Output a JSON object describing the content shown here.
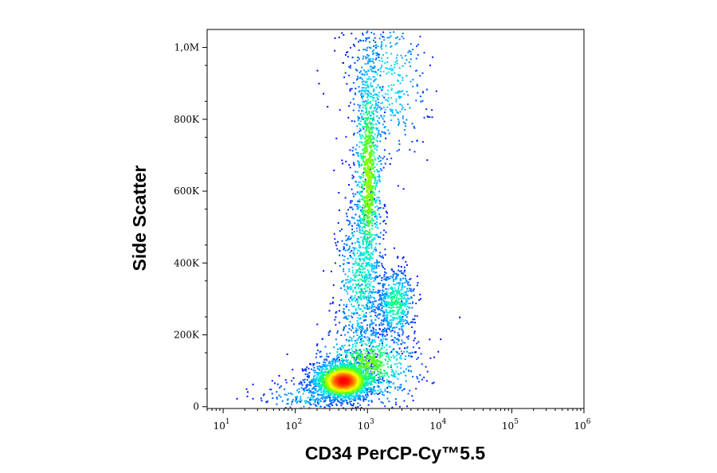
{
  "chart_data": {
    "type": "heatmap",
    "subtype": "flow-cytometry-density-dot-plot",
    "title": "",
    "xlabel": "CD34 PerCP-Cy™5.5",
    "ylabel": "Side Scatter",
    "x_scale": "log",
    "xlim": [
      6,
      1000000
    ],
    "ylim": [
      -5000,
      1050000
    ],
    "x_ticks": [
      {
        "value": 10,
        "base": "10",
        "exp": "1"
      },
      {
        "value": 100,
        "base": "10",
        "exp": "2"
      },
      {
        "value": 1000,
        "base": "10",
        "exp": "3"
      },
      {
        "value": 10000,
        "base": "10",
        "exp": "4"
      },
      {
        "value": 100000,
        "base": "10",
        "exp": "5"
      },
      {
        "value": 1000000,
        "base": "10",
        "exp": "6"
      }
    ],
    "y_ticks": [
      {
        "value": 0,
        "label": "0"
      },
      {
        "value": 200000,
        "label": "200K"
      },
      {
        "value": 400000,
        "label": "400K"
      },
      {
        "value": 600000,
        "label": "600K"
      },
      {
        "value": 800000,
        "label": "800K"
      },
      {
        "value": 1000000,
        "label": "1,0M"
      }
    ],
    "grid": false,
    "legend": "none",
    "colormap": [
      "#0000ff",
      "#0080ff",
      "#00e0ff",
      "#00ff80",
      "#80ff00",
      "#ffff00",
      "#ff8000",
      "#ff0000"
    ],
    "populations": [
      {
        "x_center": 450,
        "y_center": 75000,
        "log_x_spread": 0.22,
        "y_spread": 28000,
        "weight": 0.32,
        "peak_level": 1.0
      },
      {
        "x_center": 1000,
        "y_center": 120000,
        "log_x_spread": 0.35,
        "y_spread": 60000,
        "weight": 0.14,
        "peak_level": 0.55
      },
      {
        "x_center": 1000,
        "y_center": 640000,
        "log_x_spread": 0.1,
        "y_spread": 210000,
        "weight": 0.2,
        "peak_level": 0.6
      },
      {
        "x_center": 800,
        "y_center": 350000,
        "log_x_spread": 0.17,
        "y_spread": 120000,
        "weight": 0.12,
        "peak_level": 0.4
      },
      {
        "x_center": 2400,
        "y_center": 290000,
        "log_x_spread": 0.14,
        "y_spread": 50000,
        "weight": 0.1,
        "peak_level": 0.45
      },
      {
        "x_center": 1800,
        "y_center": 900000,
        "log_x_spread": 0.3,
        "y_spread": 120000,
        "weight": 0.08,
        "peak_level": 0.3
      },
      {
        "x_center": 150,
        "y_center": 30000,
        "log_x_spread": 0.35,
        "y_spread": 25000,
        "weight": 0.04,
        "peak_level": 0.25
      }
    ]
  }
}
